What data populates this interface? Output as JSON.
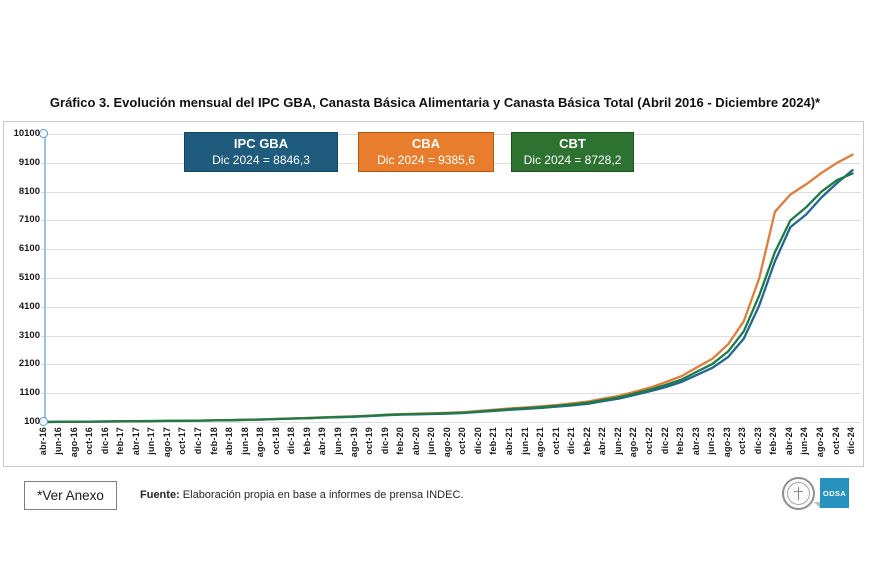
{
  "title": "Gráfico 3. Evolución mensual del IPC GBA, Canasta Básica Alimentaria y Canasta Básica Total (Abril 2016 - Diciembre 2024)*",
  "footer": {
    "anexo_label": "*Ver Anexo",
    "fuente_label": "Fuente:",
    "fuente_text": " Elaboración propia en base a informes de prensa INDEC.",
    "odsa_label": "ODSA"
  },
  "chart_data": {
    "type": "line",
    "title": "Gráfico 3. Evolución mensual del IPC GBA, Canasta Básica Alimentaria y Canasta Básica Total (Abril 2016 - Diciembre 2024)*",
    "xlabel": "",
    "ylabel": "",
    "ylim": [
      100,
      10100
    ],
    "y_ticks": [
      10100,
      9100,
      8100,
      7100,
      6100,
      5100,
      4100,
      3100,
      2100,
      1100,
      100
    ],
    "grid": "horizontal",
    "legend_position": "top-inside",
    "axis_line_color": "#9CC2E5",
    "axis_marker_color": "#5B9BD5",
    "categories": [
      "abr-16",
      "jun-16",
      "ago-16",
      "oct-16",
      "dic-16",
      "feb-17",
      "abr-17",
      "jun-17",
      "ago-17",
      "oct-17",
      "dic-17",
      "feb-18",
      "abr-18",
      "jun-18",
      "ago-18",
      "oct-18",
      "dic-18",
      "feb-19",
      "abr-19",
      "jun-19",
      "ago-19",
      "oct-19",
      "dic-19",
      "feb-20",
      "abr-20",
      "jun-20",
      "ago-20",
      "oct-20",
      "dic-20",
      "feb-21",
      "abr-21",
      "jun-21",
      "ago-21",
      "oct-21",
      "dic-21",
      "feb-22",
      "abr-22",
      "jun-22",
      "ago-22",
      "oct-22",
      "dic-22",
      "feb-23",
      "abr-23",
      "jun-23",
      "ago-23",
      "oct-23",
      "dic-23",
      "feb-24",
      "abr-24",
      "jun-24",
      "ago-24",
      "oct-24",
      "dic-24"
    ],
    "series": [
      {
        "name": "IPC GBA",
        "legend_value": "Dic 2024 = 8846,3",
        "final_value": 8846.3,
        "color": "#22678F",
        "box_color": "#1E5B7C",
        "box_border": "#17445D",
        "values": [
          100,
          106,
          110,
          114,
          119,
          123,
          128,
          132,
          137,
          142,
          148,
          155,
          163,
          174,
          185,
          203,
          219,
          232,
          252,
          268,
          285,
          308,
          337,
          357,
          369,
          379,
          393,
          414,
          450,
          487,
          527,
          560,
          593,
          633,
          680,
          737,
          829,
          917,
          1041,
          1172,
          1317,
          1492,
          1740,
          1985,
          2361,
          2997,
          4151,
          5677,
          6868,
          7300,
          7900,
          8400,
          8846.3
        ]
      },
      {
        "name": "CBA",
        "legend_value": "Dic 2024 = 9385,6",
        "final_value": 9385.6,
        "color": "#DE7E3E",
        "box_color": "#E87D2D",
        "box_border": "#B05A17",
        "values": [
          100,
          107,
          111,
          115,
          120,
          124,
          129,
          133,
          138,
          143,
          150,
          157,
          165,
          177,
          189,
          208,
          226,
          241,
          262,
          279,
          297,
          322,
          352,
          375,
          390,
          402,
          420,
          444,
          486,
          528,
          572,
          608,
          645,
          692,
          748,
          812,
          915,
          1014,
          1153,
          1302,
          1488,
          1694,
          2000,
          2300,
          2800,
          3600,
          5100,
          7400,
          8000,
          8350,
          8750,
          9100,
          9385.6
        ]
      },
      {
        "name": "CBT",
        "legend_value": "Dic 2024 = 8728,2",
        "final_value": 8728.2,
        "color": "#1F7A46",
        "box_color": "#2E7232",
        "box_border": "#1E511F",
        "values": [
          100,
          106,
          110,
          114,
          119,
          123,
          128,
          133,
          137,
          142,
          149,
          156,
          164,
          175,
          187,
          205,
          222,
          236,
          257,
          273,
          291,
          315,
          345,
          366,
          379,
          390,
          405,
          428,
          466,
          505,
          547,
          582,
          617,
          662,
          712,
          772,
          868,
          960,
          1090,
          1228,
          1390,
          1577,
          1850,
          2120,
          2550,
          3250,
          4500,
          6000,
          7100,
          7550,
          8100,
          8500,
          8728.2
        ]
      }
    ]
  }
}
